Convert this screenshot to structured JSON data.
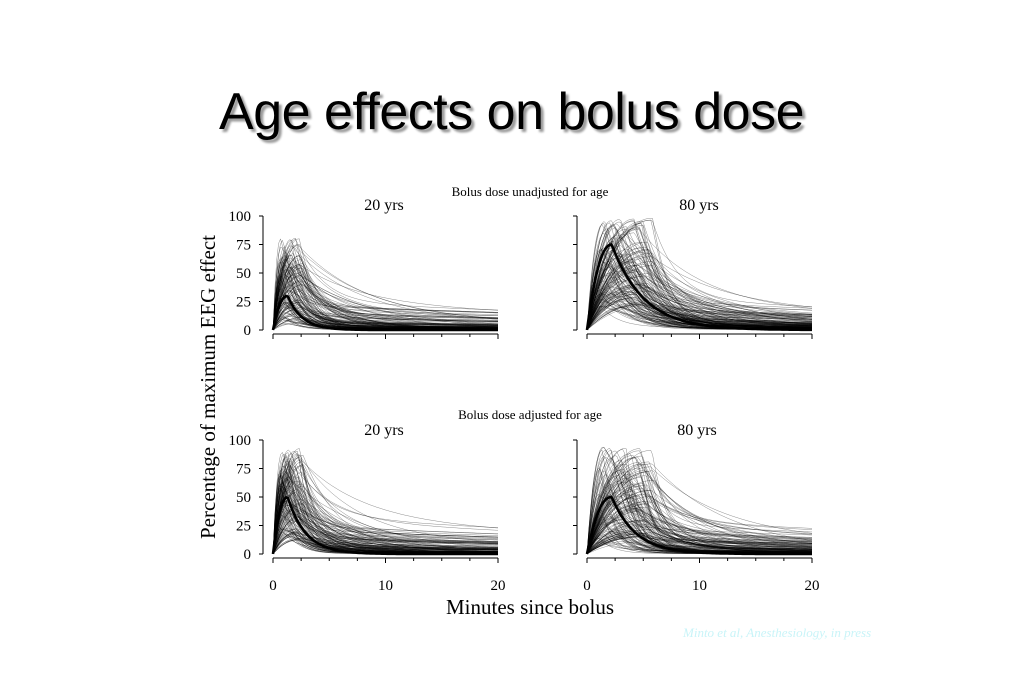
{
  "slide": {
    "title": "Age effects on bolus dose",
    "citation": "Minto et al, Anesthesiology, in press"
  },
  "chart_data": {
    "type": "line",
    "ylabel": "Percentage of maximum EEG effect",
    "xlabel": "Minutes since bolus",
    "xlim": [
      0,
      20
    ],
    "ylim": [
      0,
      100
    ],
    "xticks": [
      0,
      10,
      20
    ],
    "yticks": [
      0,
      25,
      50,
      75,
      100
    ],
    "rows": [
      {
        "title": "Bolus dose unadjusted for age",
        "panels": [
          {
            "title": "20 yrs",
            "mean_curve": {
              "peak": 30,
              "t_peak": 1.3,
              "decay": 0.75
            },
            "spaghetti": {
              "count": 140,
              "peak_min": 5,
              "peak_max": 82,
              "t_peak_min": 0.6,
              "t_peak_max": 2.8
            }
          },
          {
            "title": "80 yrs",
            "mean_curve": {
              "peak": 75,
              "t_peak": 2.2,
              "decay": 0.33
            },
            "spaghetti": {
              "count": 160,
              "peak_min": 20,
              "peak_max": 99,
              "t_peak_min": 1.0,
              "t_peak_max": 6.0
            }
          }
        ]
      },
      {
        "title": "Bolus dose adjusted for age",
        "panels": [
          {
            "title": "20 yrs",
            "mean_curve": {
              "peak": 50,
              "t_peak": 1.3,
              "decay": 0.6
            },
            "spaghetti": {
              "count": 150,
              "peak_min": 10,
              "peak_max": 93,
              "t_peak_min": 0.6,
              "t_peak_max": 2.8
            }
          },
          {
            "title": "80 yrs",
            "mean_curve": {
              "peak": 50,
              "t_peak": 2.2,
              "decay": 0.45
            },
            "spaghetti": {
              "count": 160,
              "peak_min": 10,
              "peak_max": 95,
              "t_peak_min": 1.0,
              "t_peak_max": 6.0
            }
          }
        ]
      }
    ],
    "colors": {
      "individual": "#000000",
      "mean": "#000000"
    }
  }
}
